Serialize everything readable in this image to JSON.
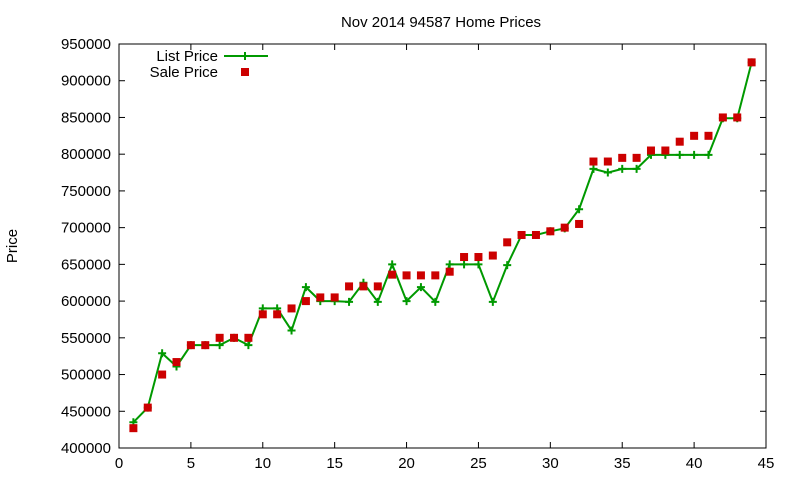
{
  "chart_data": {
    "type": "line",
    "title": "Nov 2014 94587 Home Prices",
    "xlabel": "",
    "ylabel": "Price",
    "xlim": [
      0,
      45
    ],
    "ylim": [
      400000,
      950000
    ],
    "xticks": [
      "0",
      "5",
      "10",
      "15",
      "20",
      "25",
      "30",
      "35",
      "40",
      "45"
    ],
    "yticks": [
      "400000",
      "450000",
      "500000",
      "550000",
      "600000",
      "650000",
      "700000",
      "750000",
      "800000",
      "850000",
      "900000",
      "950000"
    ],
    "grid": false,
    "legend_position": "top-left",
    "series": [
      {
        "name": "List Price",
        "style": "line-points",
        "color": "#009900",
        "x": [
          1,
          2,
          3,
          4,
          5,
          6,
          7,
          8,
          9,
          10,
          11,
          12,
          13,
          14,
          15,
          16,
          17,
          18,
          19,
          20,
          21,
          22,
          23,
          24,
          25,
          26,
          27,
          28,
          29,
          30,
          31,
          32,
          33,
          34,
          35,
          36,
          37,
          38,
          39,
          40,
          41,
          42,
          43,
          44
        ],
        "values": [
          435000,
          455000,
          529000,
          511000,
          540000,
          540000,
          540000,
          550000,
          540000,
          590000,
          590000,
          560000,
          619000,
          600000,
          600000,
          599000,
          625000,
          599000,
          650000,
          600000,
          619000,
          599000,
          650000,
          650000,
          650000,
          599000,
          649000,
          690000,
          690000,
          695000,
          699000,
          725000,
          780000,
          775000,
          780000,
          780000,
          799000,
          799000,
          799000,
          799000,
          799000,
          849000,
          849000,
          925000
        ]
      },
      {
        "name": "Sale Price",
        "style": "points",
        "color": "#cc0000",
        "x": [
          1,
          2,
          3,
          4,
          5,
          6,
          7,
          8,
          9,
          10,
          11,
          12,
          13,
          14,
          15,
          16,
          17,
          18,
          19,
          20,
          21,
          22,
          23,
          24,
          25,
          26,
          27,
          28,
          29,
          30,
          31,
          32,
          33,
          34,
          35,
          36,
          37,
          38,
          39,
          40,
          41,
          42,
          43,
          44
        ],
        "values": [
          427000,
          455000,
          500000,
          517000,
          540000,
          540000,
          550000,
          550000,
          550000,
          582000,
          582000,
          590000,
          600000,
          605000,
          605000,
          620000,
          620000,
          620000,
          636000,
          635000,
          635000,
          635000,
          640000,
          660000,
          660000,
          662000,
          680000,
          690000,
          690000,
          695000,
          700000,
          705000,
          790000,
          790000,
          795000,
          795000,
          805000,
          805000,
          817000,
          825000,
          825000,
          850000,
          850000,
          925000
        ]
      }
    ]
  }
}
